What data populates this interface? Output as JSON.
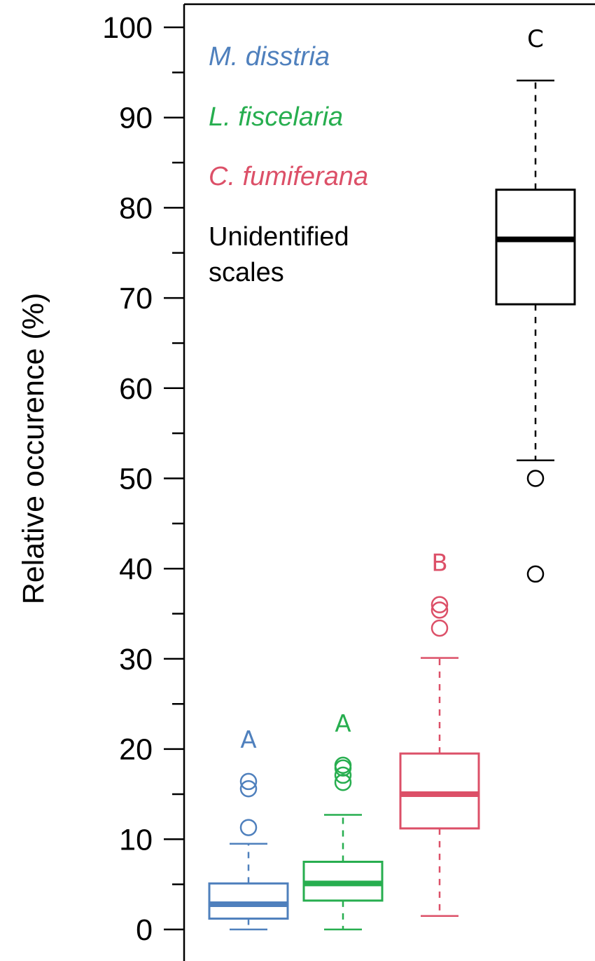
{
  "chart_data": {
    "type": "box",
    "ylabel": "Relative occurence (%)",
    "ylim": [
      0,
      100
    ],
    "y_major_ticks": [
      0,
      10,
      20,
      30,
      40,
      50,
      60,
      70,
      80,
      90,
      100
    ],
    "y_minor_step": 5,
    "grid": false,
    "legend_position": "top-left",
    "legend": [
      {
        "label": "M. disstria",
        "color": "#4f80bd",
        "italic": true
      },
      {
        "label": "L. fiscelaria",
        "color": "#27ae4f",
        "italic": true
      },
      {
        "label": "C. fumiferana",
        "color": "#dc5068",
        "italic": true
      },
      {
        "label_lines": [
          "Unidentified",
          "scales"
        ],
        "color": "#000000",
        "italic": false
      }
    ],
    "series": [
      {
        "name": "M. disstria",
        "color": "#4f80bd",
        "whisker_low": 0,
        "q1": 1.2,
        "median": 2.8,
        "q3": 5.1,
        "whisker_high": 9.5,
        "outliers": [
          11.3,
          15.6,
          16.4
        ],
        "group_letter": "A"
      },
      {
        "name": "L. fiscelaria",
        "color": "#27ae4f",
        "whisker_low": 0,
        "q1": 3.2,
        "median": 5.1,
        "q3": 7.5,
        "whisker_high": 12.7,
        "outliers": [
          16.3,
          17.1,
          17.9,
          18.2
        ],
        "group_letter": "A"
      },
      {
        "name": "C. fumiferana",
        "color": "#dc5068",
        "whisker_low": 1.5,
        "q1": 11.2,
        "median": 15.0,
        "q3": 19.5,
        "whisker_high": 30.1,
        "outliers": [
          33.4,
          35.4,
          36.0
        ],
        "group_letter": "B"
      },
      {
        "name": "Unidentified scales",
        "color": "#000000",
        "whisker_low": 52.0,
        "q1": 69.3,
        "median": 76.5,
        "q3": 82.0,
        "whisker_high": 94.1,
        "outliers": [
          39.4,
          50.0
        ],
        "group_letter": "C"
      }
    ]
  }
}
